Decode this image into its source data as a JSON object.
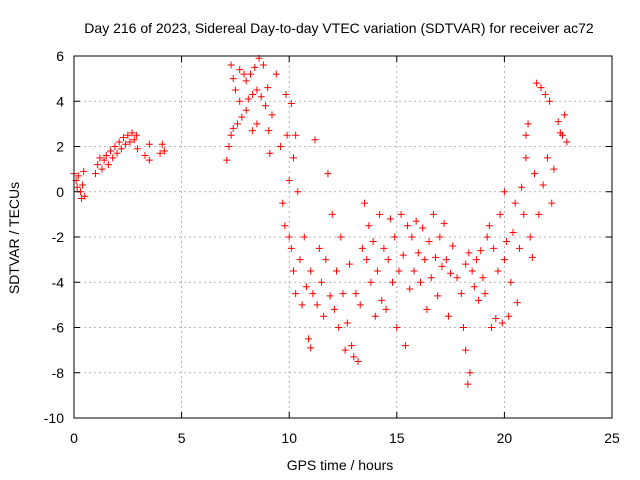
{
  "chart_data": {
    "type": "scatter",
    "title": "Day 216 of 2023, Sidereal Day-to-day VTEC variation (SDTVAR) for receiver ac72",
    "xlabel": "GPS time / hours",
    "ylabel": "SDTVAR / TECUs",
    "xlim": [
      0,
      25
    ],
    "ylim": [
      -10,
      6
    ],
    "xticks": [
      0,
      5,
      10,
      15,
      20,
      25
    ],
    "yticks": [
      -10,
      -8,
      -6,
      -4,
      -2,
      0,
      2,
      4,
      6
    ],
    "xtick_labels": [
      "0",
      "5",
      "10",
      "15",
      "20",
      "25"
    ],
    "ytick_labels": [
      "-10",
      "-8",
      "-6",
      "-4",
      "-2",
      "0",
      "2",
      "4",
      "6"
    ],
    "grid": true,
    "marker": "+",
    "color": "#ff0000",
    "series": [
      {
        "name": "SDTVAR",
        "points": [
          [
            0.0,
            0.8
          ],
          [
            0.1,
            0.5
          ],
          [
            0.15,
            0.2
          ],
          [
            0.2,
            0.7
          ],
          [
            0.3,
            0.0
          ],
          [
            0.35,
            -0.3
          ],
          [
            0.4,
            0.3
          ],
          [
            0.45,
            0.9
          ],
          [
            0.5,
            -0.2
          ],
          [
            1.0,
            0.8
          ],
          [
            1.1,
            1.2
          ],
          [
            1.2,
            1.5
          ],
          [
            1.3,
            1.0
          ],
          [
            1.4,
            1.4
          ],
          [
            1.5,
            1.6
          ],
          [
            1.6,
            1.2
          ],
          [
            1.7,
            1.8
          ],
          [
            1.8,
            1.5
          ],
          [
            1.9,
            2.0
          ],
          [
            2.0,
            1.7
          ],
          [
            2.1,
            2.2
          ],
          [
            2.2,
            1.9
          ],
          [
            2.3,
            2.4
          ],
          [
            2.4,
            2.1
          ],
          [
            2.5,
            2.5
          ],
          [
            2.6,
            2.2
          ],
          [
            2.7,
            2.6
          ],
          [
            2.8,
            2.3
          ],
          [
            2.9,
            2.5
          ],
          [
            2.95,
            1.9
          ],
          [
            3.3,
            1.6
          ],
          [
            3.5,
            1.4
          ],
          [
            3.5,
            2.1
          ],
          [
            4.0,
            1.7
          ],
          [
            4.1,
            2.1
          ],
          [
            4.2,
            1.8
          ],
          [
            7.1,
            1.4
          ],
          [
            7.2,
            2.0
          ],
          [
            7.3,
            2.5
          ],
          [
            7.3,
            5.6
          ],
          [
            7.4,
            5.0
          ],
          [
            7.4,
            2.8
          ],
          [
            7.5,
            4.5
          ],
          [
            7.6,
            3.0
          ],
          [
            7.7,
            4.0
          ],
          [
            7.7,
            5.4
          ],
          [
            7.8,
            3.3
          ],
          [
            7.9,
            5.2
          ],
          [
            8.0,
            3.6
          ],
          [
            8.0,
            4.9
          ],
          [
            8.1,
            4.1
          ],
          [
            8.2,
            5.2
          ],
          [
            8.3,
            4.3
          ],
          [
            8.3,
            2.7
          ],
          [
            8.4,
            5.5
          ],
          [
            8.5,
            4.5
          ],
          [
            8.5,
            3.0
          ],
          [
            8.6,
            5.9
          ],
          [
            8.7,
            4.2
          ],
          [
            8.8,
            5.6
          ],
          [
            8.9,
            3.8
          ],
          [
            9.0,
            4.6
          ],
          [
            9.05,
            2.7
          ],
          [
            9.1,
            1.7
          ],
          [
            9.2,
            3.4
          ],
          [
            9.4,
            5.2
          ],
          [
            9.6,
            2.0
          ],
          [
            9.7,
            -0.5
          ],
          [
            9.8,
            -1.5
          ],
          [
            9.85,
            4.3
          ],
          [
            9.9,
            2.5
          ],
          [
            10.0,
            -2.0
          ],
          [
            10.0,
            0.5
          ],
          [
            10.1,
            3.9
          ],
          [
            10.1,
            -2.5
          ],
          [
            10.2,
            1.5
          ],
          [
            10.2,
            -3.5
          ],
          [
            10.3,
            2.5
          ],
          [
            10.3,
            -4.5
          ],
          [
            10.4,
            0.0
          ],
          [
            10.5,
            -3.0
          ],
          [
            10.6,
            -5.0
          ],
          [
            10.7,
            -2.0
          ],
          [
            10.8,
            -4.2
          ],
          [
            10.9,
            -6.5
          ],
          [
            11.0,
            -3.5
          ],
          [
            11.0,
            -6.9
          ],
          [
            11.1,
            -4.5
          ],
          [
            11.2,
            2.3
          ],
          [
            11.3,
            -5.0
          ],
          [
            11.4,
            -2.5
          ],
          [
            11.5,
            -4.0
          ],
          [
            11.6,
            -5.5
          ],
          [
            11.7,
            -3.0
          ],
          [
            11.8,
            0.8
          ],
          [
            11.9,
            -4.6
          ],
          [
            12.0,
            -1.0
          ],
          [
            12.1,
            -5.2
          ],
          [
            12.2,
            -3.5
          ],
          [
            12.3,
            -6.0
          ],
          [
            12.4,
            -2.0
          ],
          [
            12.5,
            -4.5
          ],
          [
            12.6,
            -7.0
          ],
          [
            12.7,
            -5.8
          ],
          [
            12.8,
            -3.2
          ],
          [
            12.9,
            -6.8
          ],
          [
            13.0,
            -7.3
          ],
          [
            13.1,
            -4.5
          ],
          [
            13.2,
            -7.5
          ],
          [
            13.3,
            -5.0
          ],
          [
            13.4,
            -2.5
          ],
          [
            13.5,
            -0.5
          ],
          [
            13.6,
            -3.0
          ],
          [
            13.7,
            -1.5
          ],
          [
            13.8,
            -4.0
          ],
          [
            13.9,
            -2.2
          ],
          [
            14.0,
            -5.5
          ],
          [
            14.1,
            -3.5
          ],
          [
            14.2,
            -1.0
          ],
          [
            14.3,
            -4.8
          ],
          [
            14.4,
            -2.5
          ],
          [
            14.5,
            -5.2
          ],
          [
            14.6,
            -3.0
          ],
          [
            14.7,
            -1.2
          ],
          [
            14.8,
            -4.0
          ],
          [
            14.9,
            -2.0
          ],
          [
            15.0,
            -6.0
          ],
          [
            15.1,
            -3.5
          ],
          [
            15.2,
            -1.0
          ],
          [
            15.3,
            -2.8
          ],
          [
            15.4,
            -6.8
          ],
          [
            15.5,
            -1.5
          ],
          [
            15.6,
            -4.3
          ],
          [
            15.7,
            -2.0
          ],
          [
            15.8,
            -3.5
          ],
          [
            15.9,
            -1.3
          ],
          [
            16.0,
            -2.7
          ],
          [
            16.1,
            -4.0
          ],
          [
            16.2,
            -1.6
          ],
          [
            16.3,
            -3.0
          ],
          [
            16.4,
            -5.2
          ],
          [
            16.5,
            -2.2
          ],
          [
            16.6,
            -3.8
          ],
          [
            16.7,
            -1.0
          ],
          [
            16.8,
            -2.9
          ],
          [
            16.9,
            -4.6
          ],
          [
            17.0,
            -2.0
          ],
          [
            17.1,
            -3.3
          ],
          [
            17.2,
            -1.4
          ],
          [
            17.3,
            -3.0
          ],
          [
            17.4,
            -5.5
          ],
          [
            17.5,
            -3.6
          ],
          [
            17.6,
            -2.4
          ],
          [
            17.8,
            -3.8
          ],
          [
            18.0,
            -4.5
          ],
          [
            18.1,
            -6.0
          ],
          [
            18.2,
            -7.0
          ],
          [
            18.2,
            -3.2
          ],
          [
            18.3,
            -8.5
          ],
          [
            18.35,
            -2.7
          ],
          [
            18.4,
            -8.0
          ],
          [
            18.5,
            -3.5
          ],
          [
            18.6,
            -4.2
          ],
          [
            18.7,
            -3.0
          ],
          [
            18.8,
            -4.8
          ],
          [
            18.9,
            -2.6
          ],
          [
            19.0,
            -3.8
          ],
          [
            19.1,
            -4.5
          ],
          [
            19.2,
            -2.0
          ],
          [
            19.3,
            -1.5
          ],
          [
            19.4,
            -6.0
          ],
          [
            19.5,
            -2.5
          ],
          [
            19.6,
            -5.6
          ],
          [
            19.7,
            -3.5
          ],
          [
            19.8,
            -1.0
          ],
          [
            19.9,
            -5.8
          ],
          [
            20.0,
            -3.0
          ],
          [
            20.0,
            0.0
          ],
          [
            20.1,
            -2.2
          ],
          [
            20.2,
            -5.5
          ],
          [
            20.3,
            -4.0
          ],
          [
            20.4,
            -1.8
          ],
          [
            20.5,
            -0.5
          ],
          [
            20.6,
            -4.9
          ],
          [
            20.7,
            -2.5
          ],
          [
            20.8,
            0.2
          ],
          [
            20.9,
            -1.0
          ],
          [
            21.0,
            1.5
          ],
          [
            21.0,
            2.5
          ],
          [
            21.1,
            3.0
          ],
          [
            21.2,
            -2.0
          ],
          [
            21.3,
            -2.9
          ],
          [
            21.4,
            0.8
          ],
          [
            21.5,
            4.8
          ],
          [
            21.6,
            -1.0
          ],
          [
            21.7,
            4.6
          ],
          [
            21.8,
            0.3
          ],
          [
            21.9,
            4.3
          ],
          [
            22.0,
            1.5
          ],
          [
            22.1,
            4.0
          ],
          [
            22.2,
            -0.5
          ],
          [
            22.3,
            1.0
          ],
          [
            22.5,
            3.1
          ],
          [
            22.6,
            2.6
          ],
          [
            22.7,
            2.5
          ],
          [
            22.8,
            3.4
          ],
          [
            22.9,
            2.2
          ]
        ]
      }
    ]
  }
}
